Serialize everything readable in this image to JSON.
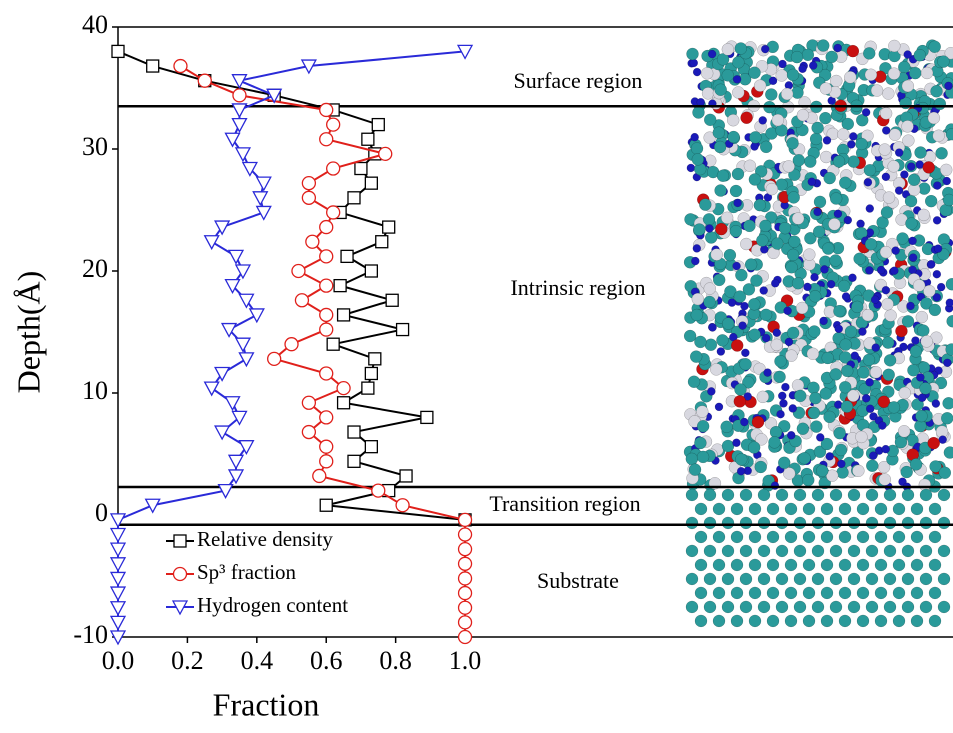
{
  "chart_data": {
    "type": "line",
    "xlabel": "Fraction",
    "ylabel": "Depth(Å)",
    "xlim": [
      0,
      2.406
    ],
    "ylim": [
      -10,
      40
    ],
    "xticks": [
      {
        "value": 0,
        "label": "0.0"
      },
      {
        "value": 0.2,
        "label": "0.2"
      },
      {
        "value": 0.4,
        "label": "0.4"
      },
      {
        "value": 0.6,
        "label": "0.6"
      },
      {
        "value": 0.8,
        "label": "0.8"
      },
      {
        "value": 1,
        "label": "1.0"
      }
    ],
    "yticks": [
      -10,
      0,
      10,
      20,
      30,
      40
    ],
    "boundaries": [
      33.5,
      2.3,
      -0.8
    ],
    "regions": [
      "Surface region",
      "Intrinsic region",
      "Transition region",
      "Substrate"
    ],
    "y": [
      38,
      36.8,
      35.6,
      34.4,
      33.2,
      32,
      30.8,
      29.6,
      28.4,
      27.2,
      26,
      24.8,
      23.6,
      22.4,
      21.2,
      20,
      18.8,
      17.6,
      16.4,
      15.2,
      14,
      12.8,
      11.6,
      10.4,
      9.2,
      8,
      6.8,
      5.6,
      4.4,
      3.2,
      2,
      0.8,
      -0.4,
      -1.6,
      -2.8,
      -4,
      -5.2,
      -6.4,
      -7.6,
      -8.8,
      -10
    ],
    "series": [
      {
        "name": "Relative density",
        "color": "#000000",
        "marker": "square",
        "values": [
          0.0,
          0.1,
          0.25,
          0.45,
          0.62,
          0.75,
          0.72,
          0.74,
          0.7,
          0.73,
          0.68,
          0.64,
          0.78,
          0.76,
          0.66,
          0.73,
          0.64,
          0.79,
          0.65,
          0.82,
          0.62,
          0.74,
          0.73,
          0.72,
          0.65,
          0.89,
          0.68,
          0.73,
          0.68,
          0.83,
          0.78,
          0.6,
          1.0,
          null,
          null,
          null,
          null,
          null,
          null,
          null,
          null
        ]
      },
      {
        "name": "Sp³ fraction",
        "color": "#e0201b",
        "marker": "circle",
        "values": [
          null,
          0.18,
          0.25,
          0.35,
          0.6,
          0.62,
          0.6,
          0.77,
          0.62,
          0.55,
          0.55,
          0.62,
          0.6,
          0.56,
          0.6,
          0.52,
          0.6,
          0.53,
          0.6,
          0.6,
          0.5,
          0.45,
          0.6,
          0.65,
          0.55,
          0.6,
          0.55,
          0.6,
          0.6,
          0.58,
          0.75,
          0.82,
          1.0,
          1.0,
          1.0,
          1.0,
          1.0,
          1.0,
          1.0,
          1.0,
          1.0
        ]
      },
      {
        "name": "Hydrogen content",
        "color": "#2a2ad8",
        "marker": "triangle",
        "values": [
          1.0,
          0.55,
          0.35,
          0.45,
          0.35,
          0.35,
          0.33,
          0.36,
          0.38,
          0.42,
          0.41,
          0.42,
          0.3,
          0.27,
          0.34,
          0.36,
          0.33,
          0.37,
          0.4,
          0.32,
          0.36,
          0.37,
          0.3,
          0.27,
          0.33,
          0.35,
          0.3,
          0.37,
          0.34,
          0.34,
          0.31,
          0.1,
          0.0,
          0.0,
          0.0,
          0.0,
          0.0,
          0.0,
          0.0,
          0.0,
          0.0
        ]
      }
    ]
  }
}
